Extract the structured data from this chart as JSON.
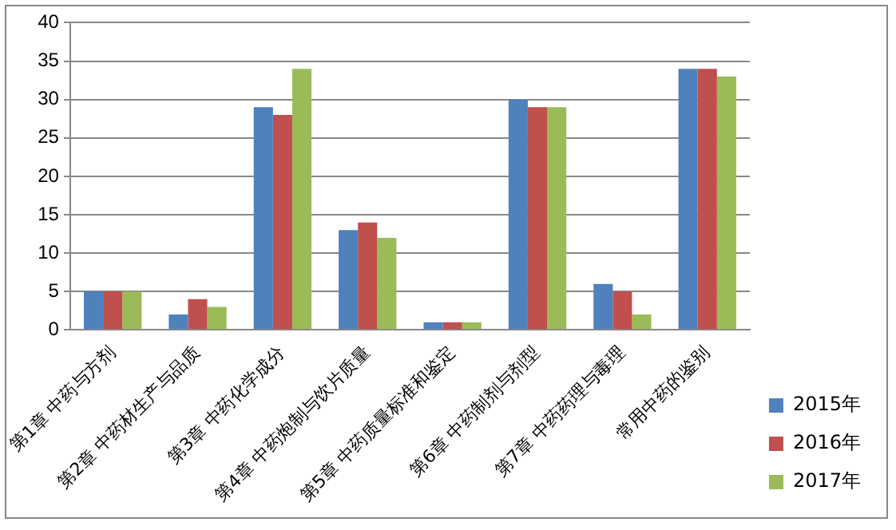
{
  "chart_data": {
    "type": "bar",
    "categories": [
      "第1章 中药与方剂",
      "第2章 中药材生产与品质",
      "第3章 中药化学成分",
      "第4章 中药炮制与饮片质量",
      "第5章 中药质量标准和鉴定",
      "第6章 中药制剂与剂型",
      "第7章 中药药理与毒理",
      "常用中药的鉴别"
    ],
    "series": [
      {
        "name": "2015年",
        "color": "#4f81bd",
        "values": [
          5,
          2,
          29,
          13,
          1,
          30,
          6,
          34
        ]
      },
      {
        "name": "2016年",
        "color": "#c0504d",
        "values": [
          5,
          4,
          28,
          14,
          1,
          29,
          5,
          34
        ]
      },
      {
        "name": "2017年",
        "color": "#9bbb59",
        "values": [
          5,
          3,
          34,
          12,
          1,
          29,
          2,
          33
        ]
      }
    ],
    "ylim": [
      0,
      40
    ],
    "yticks": [
      0,
      5,
      10,
      15,
      20,
      25,
      30,
      35,
      40
    ],
    "grid": "y",
    "legend": "bottom right"
  }
}
